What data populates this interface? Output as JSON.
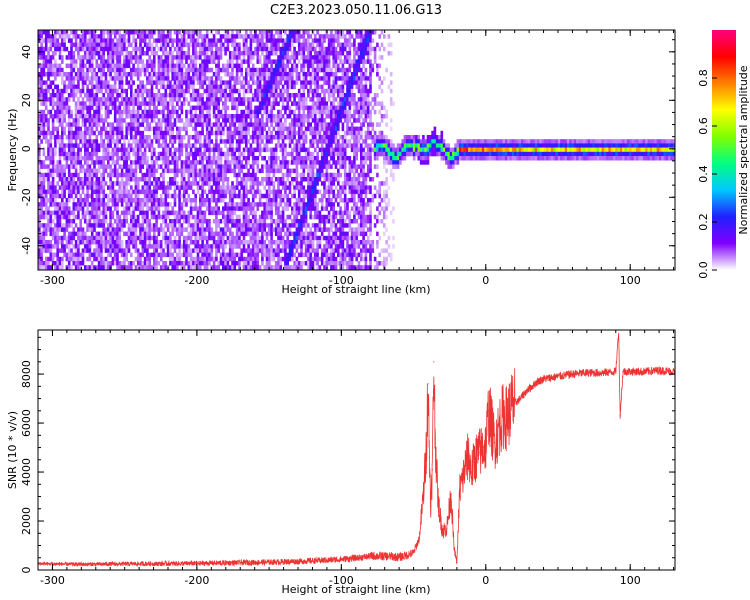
{
  "title": "C2E3.2023.050.11.06.G13",
  "chart_data": [
    {
      "type": "heatmap",
      "xlabel": "Height of straight line (km)",
      "ylabel": "Frequency (Hz)",
      "xlim": [
        -310,
        131
      ],
      "ylim": [
        -50,
        49
      ],
      "xticks": [
        -300,
        -200,
        -100,
        0,
        100
      ],
      "yticks": [
        -40,
        -20,
        0,
        20,
        40
      ],
      "colorbar": {
        "label": "Normalized spectral amplitude",
        "range": [
          0,
          1
        ],
        "ticks": [
          0.0,
          0.2,
          0.4,
          0.6,
          0.8
        ],
        "colormap": [
          "#ffffff",
          "#8000ff",
          "#2020ff",
          "#00c8ff",
          "#00ff80",
          "#80ff00",
          "#ffff00",
          "#ff8000",
          "#ff0000",
          "#ff0080"
        ]
      },
      "features": {
        "noise_region_x": [
          -310,
          -62
        ],
        "carrier_line_y": 0,
        "carrier_start_x": -78,
        "diagonal_streaks": [
          {
            "x_start": -138,
            "y_start": -45,
            "x_end": -81,
            "y_end": 49
          },
          {
            "x_start": -158,
            "y_start": 16,
            "x_end": -135,
            "y_end": 49
          }
        ]
      }
    },
    {
      "type": "line",
      "xlabel": "Height of straight line (km)",
      "ylabel": "SNR (10 * v/v)",
      "xlim": [
        -310,
        131
      ],
      "ylim": [
        0,
        9800
      ],
      "xticks": [
        -300,
        -200,
        -100,
        0,
        100
      ],
      "yticks": [
        0,
        2000,
        4000,
        6000,
        8000
      ],
      "series": [
        {
          "color": "#ee3333",
          "x": [
            -310,
            -280,
            -250,
            -220,
            -200,
            -180,
            -150,
            -130,
            -110,
            -95,
            -85,
            -78,
            -72,
            -66,
            -60,
            -55,
            -50,
            -46,
            -43,
            -41,
            -40,
            -39,
            -38,
            -37,
            -36,
            -35,
            -33,
            -30,
            -27,
            -24,
            -22,
            -20,
            -18,
            -16,
            -14,
            -12,
            -10,
            -8,
            -6,
            -4,
            -2,
            0,
            2,
            4,
            6,
            8,
            10,
            12,
            14,
            16,
            18,
            20,
            24,
            28,
            32,
            36,
            40,
            45,
            50,
            55,
            60,
            70,
            80,
            90,
            92,
            93,
            95,
            100,
            110,
            120,
            131
          ],
          "y": [
            260,
            230,
            250,
            260,
            270,
            290,
            320,
            350,
            400,
            460,
            520,
            580,
            560,
            560,
            520,
            600,
            700,
            1300,
            3200,
            5200,
            7600,
            4600,
            2600,
            4100,
            8500,
            5400,
            2800,
            1600,
            1700,
            3100,
            900,
            300,
            3300,
            3700,
            4300,
            4700,
            4000,
            4400,
            4700,
            4800,
            5000,
            5100,
            6500,
            5900,
            5200,
            5500,
            6000,
            6300,
            6200,
            6400,
            6700,
            6800,
            7000,
            7300,
            7500,
            7700,
            7800,
            7850,
            7900,
            7950,
            8000,
            8050,
            8050,
            8100,
            9800,
            6300,
            8100,
            8100,
            8100,
            8150,
            8100
          ]
        }
      ]
    }
  ]
}
